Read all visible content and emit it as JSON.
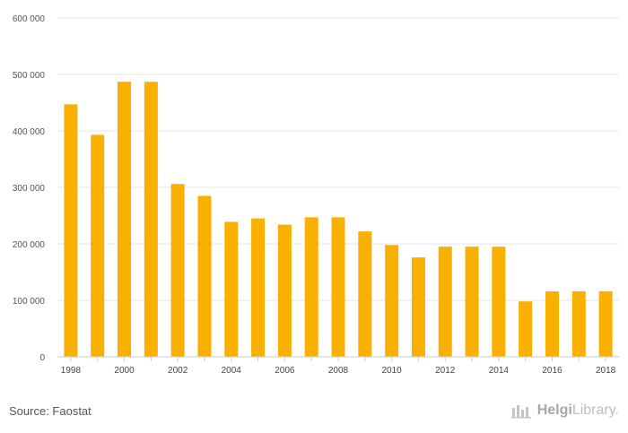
{
  "chart_data": {
    "type": "bar",
    "categories": [
      "1998",
      "1999",
      "2000",
      "2001",
      "2002",
      "2003",
      "2004",
      "2005",
      "2006",
      "2007",
      "2008",
      "2009",
      "2010",
      "2011",
      "2012",
      "2013",
      "2014",
      "2015",
      "2016",
      "2017",
      "2018"
    ],
    "values": [
      447000,
      393000,
      487000,
      487000,
      306000,
      285000,
      239000,
      245000,
      234000,
      247000,
      247000,
      222000,
      198000,
      176000,
      195000,
      195000,
      195000,
      98000,
      116000,
      116000,
      116000
    ],
    "x_tick_labels": [
      "1998",
      "2000",
      "2002",
      "2004",
      "2006",
      "2008",
      "2010",
      "2012",
      "2014",
      "2016",
      "2018"
    ],
    "y_ticks": [
      0,
      100000,
      200000,
      300000,
      400000,
      500000,
      600000
    ],
    "y_tick_labels": [
      "0",
      "100 000",
      "200 000",
      "300 000",
      "400 000",
      "500 000",
      "600 000"
    ],
    "ylim": [
      0,
      600000
    ],
    "grid": true,
    "bar_color": "#f9b000"
  },
  "footer": {
    "source": "Source: Faostat",
    "logo_brand": "Helgi",
    "logo_suffix": "Library."
  }
}
